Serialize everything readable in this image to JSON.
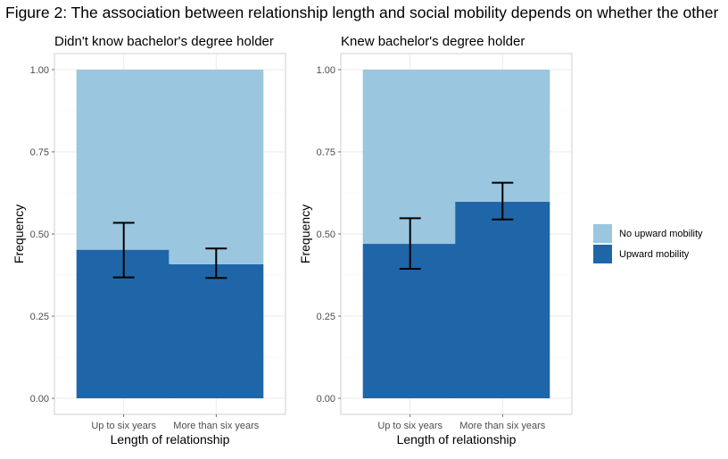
{
  "figure_title": "Figure 2: The association between relationship length and social mobility depends on whether the other",
  "chart_data": [
    {
      "type": "bar",
      "title": "Didn't know bachelor's degree holder",
      "xlabel": "Length of relationship",
      "ylabel": "Frequency",
      "categories": [
        "Up to six years",
        "More than six years"
      ],
      "ylim": [
        0,
        1
      ],
      "yticks": [
        "0.00",
        "0.25",
        "0.50",
        "0.75",
        "1.00"
      ],
      "stacked": true,
      "grid": true,
      "series": [
        {
          "name": "Upward mobility",
          "values": [
            0.452,
            0.408
          ],
          "error_low": [
            0.368,
            0.366
          ],
          "error_high": [
            0.534,
            0.456
          ]
        },
        {
          "name": "No upward mobility",
          "values": [
            0.548,
            0.592
          ]
        }
      ]
    },
    {
      "type": "bar",
      "title": "Knew bachelor's degree holder",
      "xlabel": "Length of relationship",
      "ylabel": "Frequency",
      "categories": [
        "Up to six years",
        "More than six years"
      ],
      "ylim": [
        0,
        1
      ],
      "yticks": [
        "0.00",
        "0.25",
        "0.50",
        "0.75",
        "1.00"
      ],
      "stacked": true,
      "grid": true,
      "series": [
        {
          "name": "Upward mobility",
          "values": [
            0.47,
            0.598
          ],
          "error_low": [
            0.394,
            0.544
          ],
          "error_high": [
            0.548,
            0.656
          ]
        },
        {
          "name": "No upward mobility",
          "values": [
            0.53,
            0.402
          ]
        }
      ]
    }
  ],
  "legend": {
    "placement": "right",
    "items": [
      {
        "label": "No upward mobility",
        "color": "#9ac6df"
      },
      {
        "label": "Upward mobility",
        "color": "#1f66a9"
      }
    ]
  }
}
